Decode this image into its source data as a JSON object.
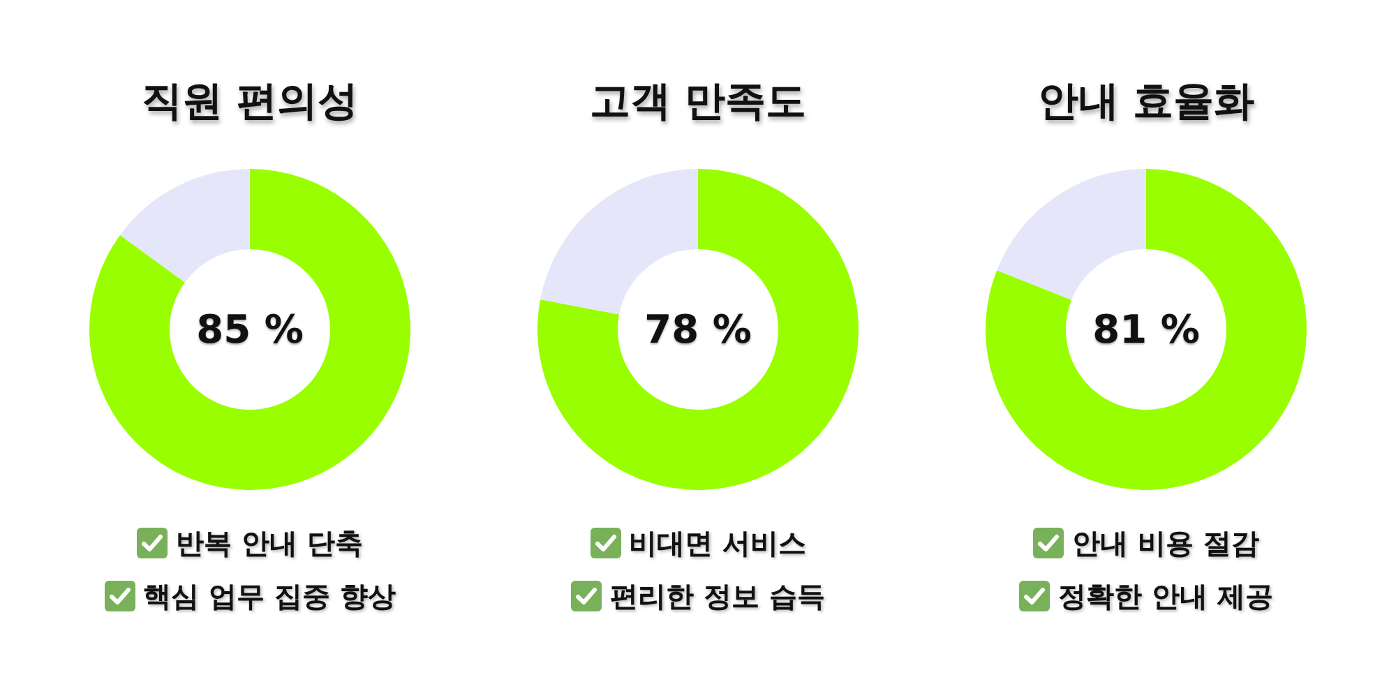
{
  "chart_data": [
    {
      "type": "donut",
      "title": "직원 편의성",
      "categories": [
        null,
        null
      ],
      "values": [
        85,
        15
      ],
      "colors": [
        "#99ff00",
        "#e6e6fa"
      ],
      "value_labels": [
        "85 %",
        null
      ],
      "annotations": [
        "반복 안내 단축",
        "핵심 업무 집중 향상"
      ]
    },
    {
      "type": "donut",
      "title": "고객 만족도",
      "categories": [
        null,
        null
      ],
      "values": [
        78,
        22
      ],
      "colors": [
        "#99ff00",
        "#e6e6fa"
      ],
      "value_labels": [
        "78 %",
        null
      ],
      "annotations": [
        "비대면 서비스",
        "편리한 정보 습득"
      ]
    },
    {
      "type": "donut",
      "title": "안내 효율화",
      "categories": [
        null,
        null
      ],
      "values": [
        81,
        19
      ],
      "colors": [
        "#99ff00",
        "#e6e6fa"
      ],
      "value_labels": [
        "81 %",
        null
      ],
      "annotations": [
        "안내 비용 절감",
        "정확한 안내 제공"
      ]
    }
  ]
}
